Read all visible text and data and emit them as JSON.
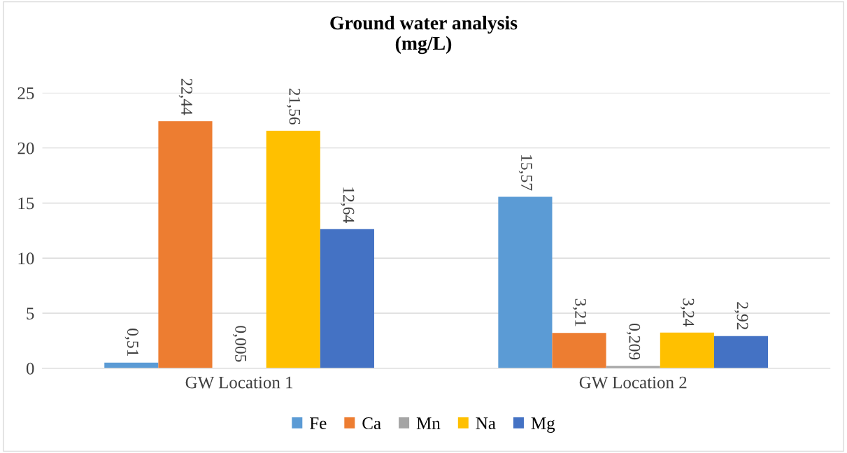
{
  "chart_data": {
    "type": "bar",
    "title": "Ground water analysis\n(mg/L)",
    "categories": [
      "GW Location 1",
      "GW Location 2"
    ],
    "series": [
      {
        "name": "Fe",
        "color": "#5b9bd5",
        "values": [
          0.51,
          15.57
        ],
        "value_labels": [
          "0,51",
          "15,57"
        ]
      },
      {
        "name": "Ca",
        "color": "#ed7d31",
        "values": [
          22.44,
          3.21
        ],
        "value_labels": [
          "22,44",
          "3,21"
        ]
      },
      {
        "name": "Mn",
        "color": "#a5a5a5",
        "values": [
          0.005,
          0.209
        ],
        "value_labels": [
          "0,005",
          "0,209"
        ]
      },
      {
        "name": "Na",
        "color": "#ffc000",
        "values": [
          21.56,
          3.24
        ],
        "value_labels": [
          "21,56",
          "3,24"
        ]
      },
      {
        "name": "Mg",
        "color": "#4472c4",
        "values": [
          12.64,
          2.92
        ],
        "value_labels": [
          "12,64",
          "2,92"
        ]
      }
    ],
    "ylim": [
      0,
      25
    ],
    "yticks": [
      0,
      5,
      10,
      15,
      20,
      25
    ],
    "grid": "y",
    "legend": "bottom"
  }
}
